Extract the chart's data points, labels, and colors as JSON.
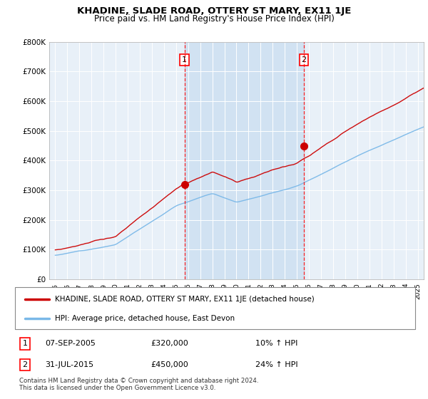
{
  "title": "KHADINE, SLADE ROAD, OTTERY ST MARY, EX11 1JE",
  "subtitle": "Price paid vs. HM Land Registry's House Price Index (HPI)",
  "bg_color": "#e8f0f8",
  "shade_color": "#c8ddf0",
  "grid_color": "#cccccc",
  "hpi_color": "#7ab8e8",
  "price_color": "#cc0000",
  "sale1_x": 2005.69,
  "sale1_y": 320000,
  "sale2_x": 2015.58,
  "sale2_y": 450000,
  "ylim": [
    0,
    800000
  ],
  "xlim": [
    1994.5,
    2025.5
  ],
  "legend_line1": "KHADINE, SLADE ROAD, OTTERY ST MARY, EX11 1JE (detached house)",
  "legend_line2": "HPI: Average price, detached house, East Devon",
  "note1_date": "07-SEP-2005",
  "note1_price": "£320,000",
  "note1_hpi": "10% ↑ HPI",
  "note2_date": "31-JUL-2015",
  "note2_price": "£450,000",
  "note2_hpi": "24% ↑ HPI",
  "footer": "Contains HM Land Registry data © Crown copyright and database right 2024.\nThis data is licensed under the Open Government Licence v3.0."
}
